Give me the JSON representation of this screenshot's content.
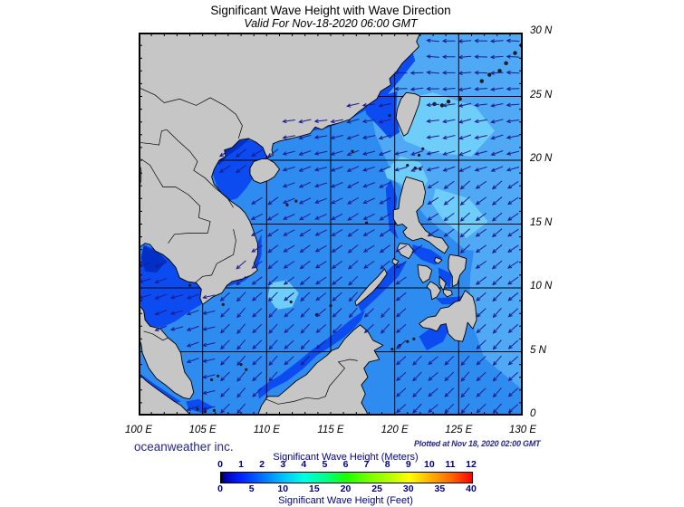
{
  "header": {
    "title": "Significant Wave Height with Wave Direction",
    "subtitle": "Valid For Nov-18-2020 06:00 GMT"
  },
  "footer": {
    "credit": "oceanweather inc.",
    "plotted_at": "Plotted at Nov 18, 2020 02:00 GMT"
  },
  "map": {
    "lon_labels": [
      "100 E",
      "105 E",
      "110 E",
      "115 E",
      "120 E",
      "125 E",
      "130 E"
    ],
    "lat_labels": [
      "30 N",
      "25 N",
      "20 N",
      "15 N",
      "10 N",
      "5 N",
      "0"
    ],
    "lon_range": [
      100,
      130
    ],
    "lat_range": [
      0,
      30
    ],
    "grid_step_deg": 5,
    "tick_step_deg": 1
  },
  "legend": {
    "meters_title": "Significant Wave Height (Meters)",
    "feet_title": "Significant Wave Height (Feet)",
    "meters_ticks": [
      "0",
      "1",
      "2",
      "3",
      "4",
      "5",
      "6",
      "7",
      "8",
      "9",
      "10",
      "11",
      "12"
    ],
    "feet_ticks": [
      "0",
      "5",
      "10",
      "15",
      "20",
      "25",
      "30",
      "35",
      "40"
    ],
    "gradient": [
      {
        "p": 0,
        "c": "#000000"
      },
      {
        "p": 1.5,
        "c": "#0000b0"
      },
      {
        "p": 8,
        "c": "#0023ff"
      },
      {
        "p": 17,
        "c": "#0078ff"
      },
      {
        "p": 25,
        "c": "#00c3ff"
      },
      {
        "p": 33,
        "c": "#00ffe1"
      },
      {
        "p": 42,
        "c": "#00ff87"
      },
      {
        "p": 50,
        "c": "#1dff00"
      },
      {
        "p": 58,
        "c": "#71ff00"
      },
      {
        "p": 67,
        "c": "#b3ff00"
      },
      {
        "p": 75,
        "c": "#ffff00"
      },
      {
        "p": 83,
        "c": "#ffb400"
      },
      {
        "p": 92,
        "c": "#ff6400"
      },
      {
        "p": 100,
        "c": "#ff0000"
      }
    ]
  },
  "colors": {
    "ocean_base": "#2E8CF0",
    "ocean_light": "#4FA9F5",
    "ocean_lighter": "#6FCDF9",
    "ocean_deep": "#0B4BF0",
    "ocean_deepest": "#0030C8",
    "land": "#C6C6C6",
    "coast": "#000000",
    "grid": "#000000",
    "arrow": "#1c1c8f",
    "navy_text": "#26268c",
    "legend_navy": "#00008B"
  }
}
